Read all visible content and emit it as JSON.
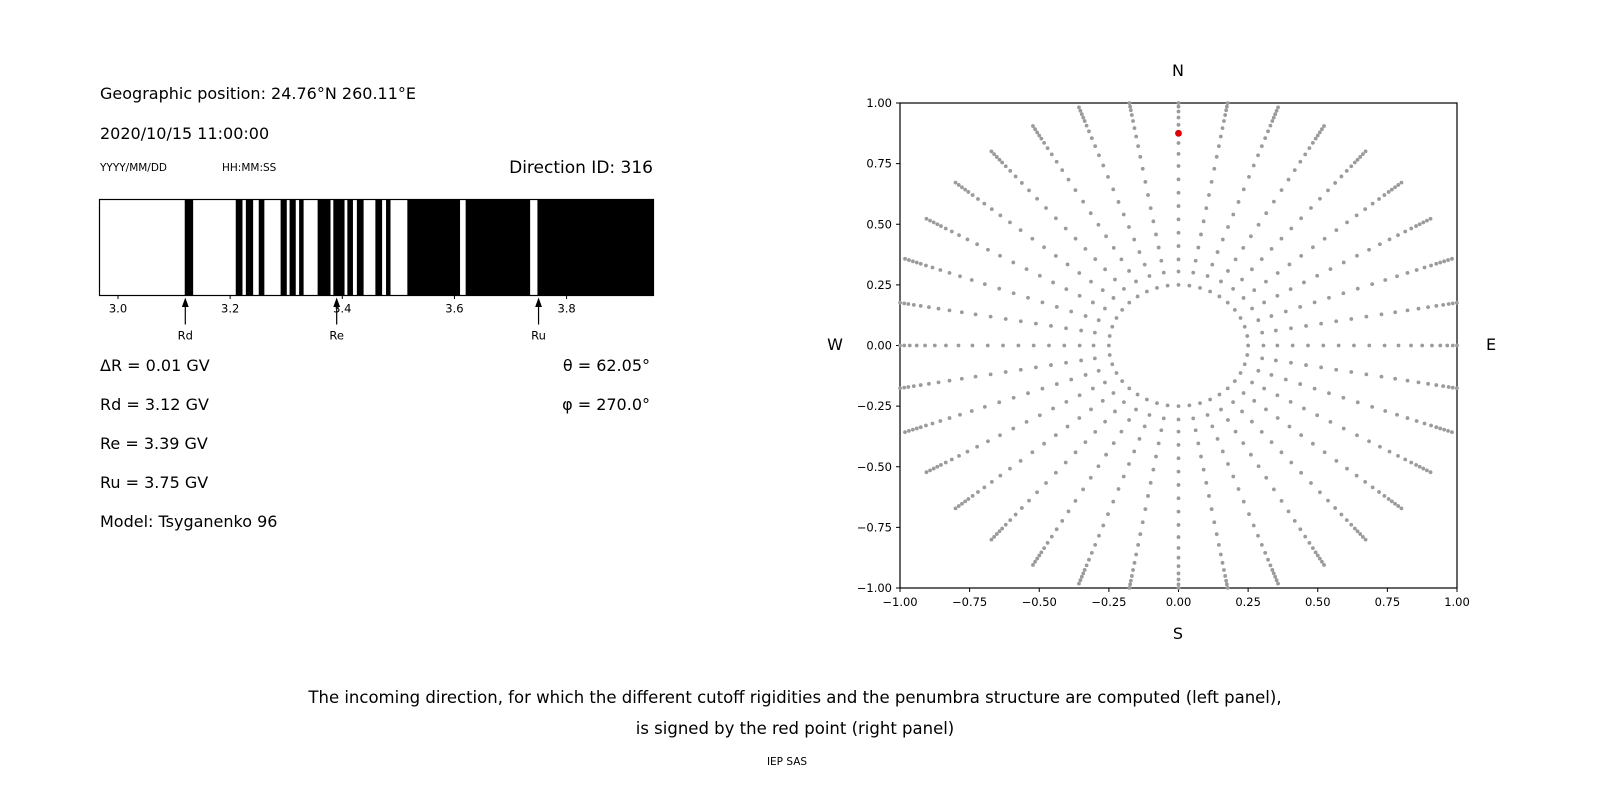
{
  "left_panel": {
    "geo_position": "Geographic position: 24.76°N 260.11°E",
    "datetime": "2020/10/15 11:00:00",
    "date_format_label": "YYYY/MM/DD",
    "time_format_label": "HH:MM:SS",
    "direction_id": "Direction ID: 316",
    "info_lines": [
      "ΔR = 0.01 GV",
      "Rd = 3.12 GV",
      "Re = 3.39 GV",
      "Ru = 3.75 GV",
      "Model: Tsyganenko 96"
    ],
    "theta": "θ = 62.05°",
    "phi": "φ = 270.0°"
  },
  "chart_data": [
    {
      "type": "bar",
      "title": "",
      "xlabel": "",
      "ylabel": "",
      "xlim": [
        2.967,
        3.955
      ],
      "xticks": [
        3.0,
        3.2,
        3.4,
        3.6,
        3.8
      ],
      "xtick_labels": [
        "3.0",
        "3.2",
        "3.4",
        "3.6",
        "3.8"
      ],
      "bar_color": "#000000",
      "background": "#ffffff",
      "black_intervals": [
        [
          3.119,
          3.134
        ],
        [
          3.21,
          3.222
        ],
        [
          3.228,
          3.241
        ],
        [
          3.251,
          3.261
        ],
        [
          3.29,
          3.301
        ],
        [
          3.306,
          3.317
        ],
        [
          3.323,
          3.331
        ],
        [
          3.356,
          3.379
        ],
        [
          3.384,
          3.404
        ],
        [
          3.409,
          3.419
        ],
        [
          3.426,
          3.438
        ],
        [
          3.459,
          3.471
        ],
        [
          3.478,
          3.486
        ],
        [
          3.516,
          3.61
        ],
        [
          3.62,
          3.735
        ],
        [
          3.748,
          3.955
        ]
      ],
      "markers": [
        {
          "label": "Rd",
          "value": 3.12
        },
        {
          "label": "Re",
          "value": 3.39
        },
        {
          "label": "Ru",
          "value": 3.75
        }
      ]
    },
    {
      "type": "scatter",
      "title": "",
      "xlabel": "",
      "ylabel": "",
      "xlim": [
        -1.0,
        1.0
      ],
      "ylim": [
        -1.0,
        1.0
      ],
      "xticks": [
        -1.0,
        -0.75,
        -0.5,
        -0.25,
        0.0,
        0.25,
        0.5,
        0.75,
        1.0
      ],
      "xtick_labels": [
        "−1.00",
        "−0.75",
        "−0.50",
        "−0.25",
        "0.00",
        "0.25",
        "0.50",
        "0.75",
        "1.00"
      ],
      "yticks": [
        -1.0,
        -0.75,
        -0.5,
        -0.25,
        0.0,
        0.25,
        0.5,
        0.75,
        1.0
      ],
      "ytick_labels": [
        "−1.00",
        "−0.75",
        "−0.50",
        "−0.25",
        "0.00",
        "0.25",
        "0.50",
        "0.75",
        "1.00"
      ],
      "compass": {
        "top": "N",
        "bottom": "S",
        "left": "W",
        "right": "E"
      },
      "dot_color": "#9b9b9b",
      "red_point": {
        "x": 0.0,
        "y": 0.875,
        "color": "#e00000"
      },
      "pattern": {
        "ring_radius": 0.25,
        "ring_points": 40,
        "spokes": 36,
        "spoke_radii": [
          0.305,
          0.355,
          0.41,
          0.465,
          0.52,
          0.575,
          0.63,
          0.685,
          0.74,
          0.79,
          0.835,
          0.875,
          0.91,
          0.94,
          0.965,
          0.985,
          1.0,
          1.015,
          1.03,
          1.045
        ]
      }
    }
  ],
  "caption": {
    "line1": "The incoming direction, for which the different cutoff rigidities and the penumbra structure are computed (left panel),",
    "line2": "is signed by the red point (right panel)",
    "credit": "IEP SAS"
  }
}
